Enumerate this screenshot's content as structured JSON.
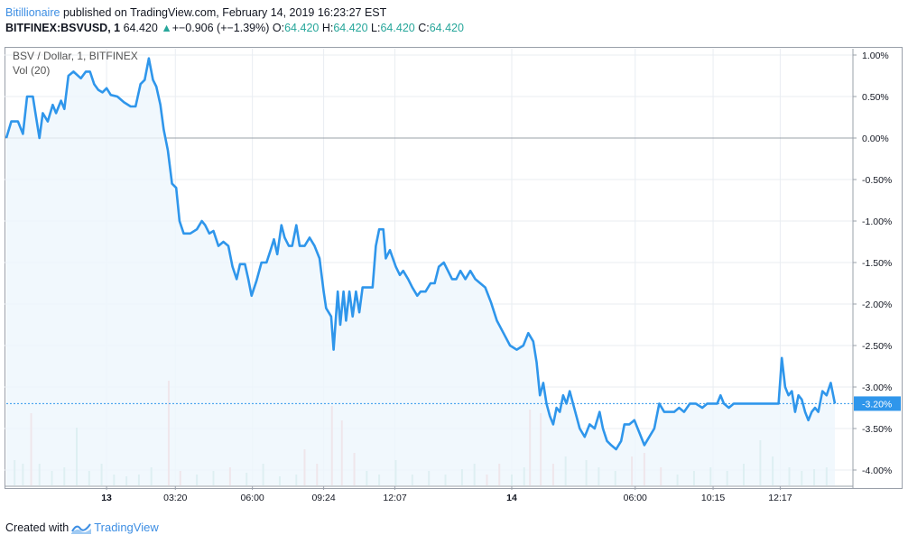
{
  "header": {
    "author": "Bitillionaire",
    "published_text": "published on TradingView.com, February 14, 2019 16:23:27 EST",
    "symbol": "BITFINEX:BSVUSD, 1",
    "last": "64.420",
    "change": "+−0.906 (+−1.39%)",
    "o_label": "O:",
    "o_value": "64.420",
    "h_label": "H:",
    "h_value": "64.420",
    "l_label": "L:",
    "l_value": "64.420",
    "c_label": "C:",
    "c_value": "64.420"
  },
  "legend": {
    "series_title": "BSV / Dollar, 1, BITFINEX",
    "volume_title": "Vol (20)"
  },
  "footer": {
    "created_with": "Created with",
    "brand": "TradingView"
  },
  "colors": {
    "line": "#2f96eb",
    "area": "#eef6fd",
    "vol_up": "#9fd3c9",
    "vol_down": "#f2a4a4",
    "grid": "#e9edf2",
    "last_badge": "#2f96eb"
  },
  "chart_data": {
    "type": "line",
    "title": "BSV / Dollar, 1, BITFINEX",
    "ylabel": "%",
    "ylim": [
      -4.2,
      1.2
    ],
    "y_ticks": [
      "1.00%",
      "0.50%",
      "0.00%",
      "-0.50%",
      "-1.00%",
      "-1.50%",
      "-2.00%",
      "-2.50%",
      "-3.00%",
      "-3.50%",
      "-4.00%"
    ],
    "y_tick_values": [
      1.0,
      0.5,
      0.0,
      -0.5,
      -1.0,
      -1.5,
      -2.0,
      -2.5,
      -3.0,
      -3.5,
      -4.0
    ],
    "x_ticks": [
      {
        "label": "13",
        "x": 0.121,
        "bold": true
      },
      {
        "label": "03:20",
        "x": 0.204
      },
      {
        "label": "06:00",
        "x": 0.297
      },
      {
        "label": "09:24",
        "x": 0.383
      },
      {
        "label": "12:07",
        "x": 0.469
      },
      {
        "label": "14",
        "x": 0.61,
        "bold": true
      },
      {
        "label": "06:00",
        "x": 0.759
      },
      {
        "label": "10:15",
        "x": 0.853
      },
      {
        "label": "12:17",
        "x": 0.934
      }
    ],
    "last_value_label": "-3.20%",
    "last_value": -3.2,
    "grid": true,
    "series": [
      {
        "points": [
          [
            0.0,
            0.0
          ],
          [
            0.006,
            0.2
          ],
          [
            0.014,
            0.2
          ],
          [
            0.02,
            0.05
          ],
          [
            0.025,
            0.5
          ],
          [
            0.032,
            0.5
          ],
          [
            0.036,
            0.25
          ],
          [
            0.04,
            0.0
          ],
          [
            0.044,
            0.3
          ],
          [
            0.05,
            0.2
          ],
          [
            0.056,
            0.4
          ],
          [
            0.06,
            0.3
          ],
          [
            0.066,
            0.45
          ],
          [
            0.07,
            0.35
          ],
          [
            0.075,
            0.75
          ],
          [
            0.081,
            0.8
          ],
          [
            0.09,
            0.72
          ],
          [
            0.096,
            0.8
          ],
          [
            0.101,
            0.8
          ],
          [
            0.106,
            0.65
          ],
          [
            0.111,
            0.58
          ],
          [
            0.116,
            0.55
          ],
          [
            0.121,
            0.6
          ],
          [
            0.126,
            0.52
          ],
          [
            0.134,
            0.5
          ],
          [
            0.142,
            0.43
          ],
          [
            0.15,
            0.38
          ],
          [
            0.156,
            0.38
          ],
          [
            0.162,
            0.65
          ],
          [
            0.167,
            0.7
          ],
          [
            0.172,
            0.96
          ],
          [
            0.177,
            0.7
          ],
          [
            0.181,
            0.62
          ],
          [
            0.186,
            0.4
          ],
          [
            0.19,
            0.1
          ],
          [
            0.195,
            -0.15
          ],
          [
            0.2,
            -0.55
          ],
          [
            0.205,
            -0.6
          ],
          [
            0.209,
            -1.0
          ],
          [
            0.214,
            -1.15
          ],
          [
            0.222,
            -1.15
          ],
          [
            0.23,
            -1.1
          ],
          [
            0.236,
            -1.0
          ],
          [
            0.24,
            -1.05
          ],
          [
            0.245,
            -1.15
          ],
          [
            0.25,
            -1.12
          ],
          [
            0.256,
            -1.3
          ],
          [
            0.262,
            -1.25
          ],
          [
            0.268,
            -1.3
          ],
          [
            0.273,
            -1.55
          ],
          [
            0.278,
            -1.7
          ],
          [
            0.282,
            -1.52
          ],
          [
            0.288,
            -1.52
          ],
          [
            0.292,
            -1.7
          ],
          [
            0.296,
            -1.9
          ],
          [
            0.302,
            -1.72
          ],
          [
            0.308,
            -1.5
          ],
          [
            0.314,
            -1.5
          ],
          [
            0.319,
            -1.35
          ],
          [
            0.323,
            -1.22
          ],
          [
            0.327,
            -1.4
          ],
          [
            0.332,
            -1.05
          ],
          [
            0.336,
            -1.2
          ],
          [
            0.341,
            -1.3
          ],
          [
            0.345,
            -1.3
          ],
          [
            0.35,
            -1.05
          ],
          [
            0.354,
            -1.3
          ],
          [
            0.36,
            -1.3
          ],
          [
            0.366,
            -1.2
          ],
          [
            0.372,
            -1.3
          ],
          [
            0.378,
            -1.45
          ],
          [
            0.383,
            -1.85
          ],
          [
            0.386,
            -2.05
          ],
          [
            0.392,
            -2.15
          ],
          [
            0.395,
            -2.55
          ],
          [
            0.4,
            -1.85
          ],
          [
            0.403,
            -2.25
          ],
          [
            0.407,
            -1.85
          ],
          [
            0.41,
            -2.2
          ],
          [
            0.414,
            -1.85
          ],
          [
            0.418,
            -2.15
          ],
          [
            0.422,
            -1.85
          ],
          [
            0.426,
            -2.1
          ],
          [
            0.43,
            -1.8
          ],
          [
            0.436,
            -1.8
          ],
          [
            0.442,
            -1.8
          ],
          [
            0.446,
            -1.3
          ],
          [
            0.45,
            -1.1
          ],
          [
            0.455,
            -1.1
          ],
          [
            0.458,
            -1.45
          ],
          [
            0.463,
            -1.35
          ],
          [
            0.47,
            -1.55
          ],
          [
            0.475,
            -1.65
          ],
          [
            0.479,
            -1.6
          ],
          [
            0.485,
            -1.7
          ],
          [
            0.49,
            -1.8
          ],
          [
            0.496,
            -1.9
          ],
          [
            0.5,
            -1.85
          ],
          [
            0.506,
            -1.85
          ],
          [
            0.512,
            -1.75
          ],
          [
            0.517,
            -1.75
          ],
          [
            0.522,
            -1.55
          ],
          [
            0.528,
            -1.5
          ],
          [
            0.533,
            -1.6
          ],
          [
            0.538,
            -1.7
          ],
          [
            0.543,
            -1.7
          ],
          [
            0.548,
            -1.6
          ],
          [
            0.554,
            -1.7
          ],
          [
            0.56,
            -1.6
          ],
          [
            0.566,
            -1.7
          ],
          [
            0.572,
            -1.75
          ],
          [
            0.578,
            -1.8
          ],
          [
            0.585,
            -1.98
          ],
          [
            0.592,
            -2.2
          ],
          [
            0.6,
            -2.35
          ],
          [
            0.608,
            -2.5
          ],
          [
            0.616,
            -2.55
          ],
          [
            0.624,
            -2.5
          ],
          [
            0.63,
            -2.35
          ],
          [
            0.636,
            -2.45
          ],
          [
            0.64,
            -2.7
          ],
          [
            0.644,
            -3.1
          ],
          [
            0.648,
            -2.95
          ],
          [
            0.652,
            -3.2
          ],
          [
            0.656,
            -3.35
          ],
          [
            0.66,
            -3.45
          ],
          [
            0.664,
            -3.25
          ],
          [
            0.668,
            -3.3
          ],
          [
            0.672,
            -3.1
          ],
          [
            0.676,
            -3.2
          ],
          [
            0.68,
            -3.05
          ],
          [
            0.684,
            -3.2
          ],
          [
            0.688,
            -3.35
          ],
          [
            0.692,
            -3.5
          ],
          [
            0.698,
            -3.6
          ],
          [
            0.704,
            -3.45
          ],
          [
            0.71,
            -3.5
          ],
          [
            0.716,
            -3.3
          ],
          [
            0.72,
            -3.5
          ],
          [
            0.725,
            -3.65
          ],
          [
            0.73,
            -3.7
          ],
          [
            0.736,
            -3.75
          ],
          [
            0.742,
            -3.65
          ],
          [
            0.746,
            -3.45
          ],
          [
            0.752,
            -3.45
          ],
          [
            0.758,
            -3.4
          ],
          [
            0.764,
            -3.55
          ],
          [
            0.77,
            -3.7
          ],
          [
            0.776,
            -3.6
          ],
          [
            0.782,
            -3.5
          ],
          [
            0.788,
            -3.2
          ],
          [
            0.794,
            -3.3
          ],
          [
            0.8,
            -3.3
          ],
          [
            0.806,
            -3.3
          ],
          [
            0.812,
            -3.25
          ],
          [
            0.818,
            -3.3
          ],
          [
            0.825,
            -3.2
          ],
          [
            0.832,
            -3.2
          ],
          [
            0.84,
            -3.25
          ],
          [
            0.846,
            -3.2
          ],
          [
            0.852,
            -3.2
          ],
          [
            0.858,
            -3.2
          ],
          [
            0.862,
            -3.1
          ],
          [
            0.866,
            -3.2
          ],
          [
            0.872,
            -3.25
          ],
          [
            0.878,
            -3.2
          ],
          [
            0.884,
            -3.2
          ],
          [
            0.89,
            -3.2
          ],
          [
            0.896,
            -3.2
          ],
          [
            0.902,
            -3.2
          ],
          [
            0.908,
            -3.2
          ],
          [
            0.914,
            -3.2
          ],
          [
            0.92,
            -3.2
          ],
          [
            0.924,
            -3.2
          ],
          [
            0.928,
            -3.2
          ],
          [
            0.932,
            -3.2
          ],
          [
            0.936,
            -2.65
          ],
          [
            0.94,
            -3.0
          ],
          [
            0.944,
            -3.1
          ],
          [
            0.948,
            -3.05
          ],
          [
            0.952,
            -3.3
          ],
          [
            0.956,
            -3.1
          ],
          [
            0.96,
            -3.15
          ],
          [
            0.964,
            -3.3
          ],
          [
            0.968,
            -3.4
          ],
          [
            0.972,
            -3.3
          ],
          [
            0.976,
            -3.25
          ],
          [
            0.98,
            -3.3
          ],
          [
            0.985,
            -3.05
          ],
          [
            0.99,
            -3.1
          ],
          [
            0.995,
            -2.95
          ],
          [
            1.0,
            -3.2
          ]
        ]
      }
    ],
    "volume": [
      [
        0.01,
        0.14,
        "up"
      ],
      [
        0.02,
        0.12,
        "up"
      ],
      [
        0.03,
        0.4,
        "down"
      ],
      [
        0.04,
        0.12,
        "up"
      ],
      [
        0.055,
        0.08,
        "up"
      ],
      [
        0.07,
        0.1,
        "up"
      ],
      [
        0.085,
        0.32,
        "up"
      ],
      [
        0.1,
        0.08,
        "up"
      ],
      [
        0.115,
        0.12,
        "up"
      ],
      [
        0.13,
        0.06,
        "up"
      ],
      [
        0.145,
        0.05,
        "up"
      ],
      [
        0.16,
        0.06,
        "up"
      ],
      [
        0.175,
        0.1,
        "up"
      ],
      [
        0.196,
        0.58,
        "down"
      ],
      [
        0.21,
        0.08,
        "down"
      ],
      [
        0.23,
        0.06,
        "up"
      ],
      [
        0.25,
        0.08,
        "up"
      ],
      [
        0.27,
        0.1,
        "down"
      ],
      [
        0.29,
        0.07,
        "up"
      ],
      [
        0.31,
        0.12,
        "up"
      ],
      [
        0.33,
        0.05,
        "up"
      ],
      [
        0.35,
        0.06,
        "up"
      ],
      [
        0.36,
        0.2,
        "down"
      ],
      [
        0.375,
        0.12,
        "down"
      ],
      [
        0.393,
        0.44,
        "down"
      ],
      [
        0.405,
        0.36,
        "down"
      ],
      [
        0.42,
        0.18,
        "down"
      ],
      [
        0.435,
        0.08,
        "up"
      ],
      [
        0.45,
        0.06,
        "up"
      ],
      [
        0.47,
        0.14,
        "up"
      ],
      [
        0.49,
        0.06,
        "up"
      ],
      [
        0.51,
        0.08,
        "up"
      ],
      [
        0.53,
        0.06,
        "up"
      ],
      [
        0.55,
        0.09,
        "up"
      ],
      [
        0.565,
        0.12,
        "up"
      ],
      [
        0.58,
        0.06,
        "down"
      ],
      [
        0.595,
        0.12,
        "down"
      ],
      [
        0.61,
        0.06,
        "up"
      ],
      [
        0.625,
        0.1,
        "up"
      ],
      [
        0.632,
        0.42,
        "down"
      ],
      [
        0.645,
        0.4,
        "down"
      ],
      [
        0.66,
        0.12,
        "down"
      ],
      [
        0.675,
        0.16,
        "up"
      ],
      [
        0.7,
        0.14,
        "up"
      ],
      [
        0.715,
        0.1,
        "up"
      ],
      [
        0.735,
        0.08,
        "up"
      ],
      [
        0.755,
        0.16,
        "down"
      ],
      [
        0.77,
        0.18,
        "down"
      ],
      [
        0.79,
        0.1,
        "down"
      ],
      [
        0.81,
        0.06,
        "up"
      ],
      [
        0.83,
        0.08,
        "up"
      ],
      [
        0.85,
        0.1,
        "up"
      ],
      [
        0.87,
        0.08,
        "up"
      ],
      [
        0.89,
        0.12,
        "up"
      ],
      [
        0.91,
        0.25,
        "up"
      ],
      [
        0.925,
        0.16,
        "up"
      ],
      [
        0.945,
        0.1,
        "up"
      ],
      [
        0.96,
        0.08,
        "up"
      ],
      [
        0.975,
        0.09,
        "up"
      ],
      [
        0.99,
        0.1,
        "up"
      ]
    ]
  }
}
